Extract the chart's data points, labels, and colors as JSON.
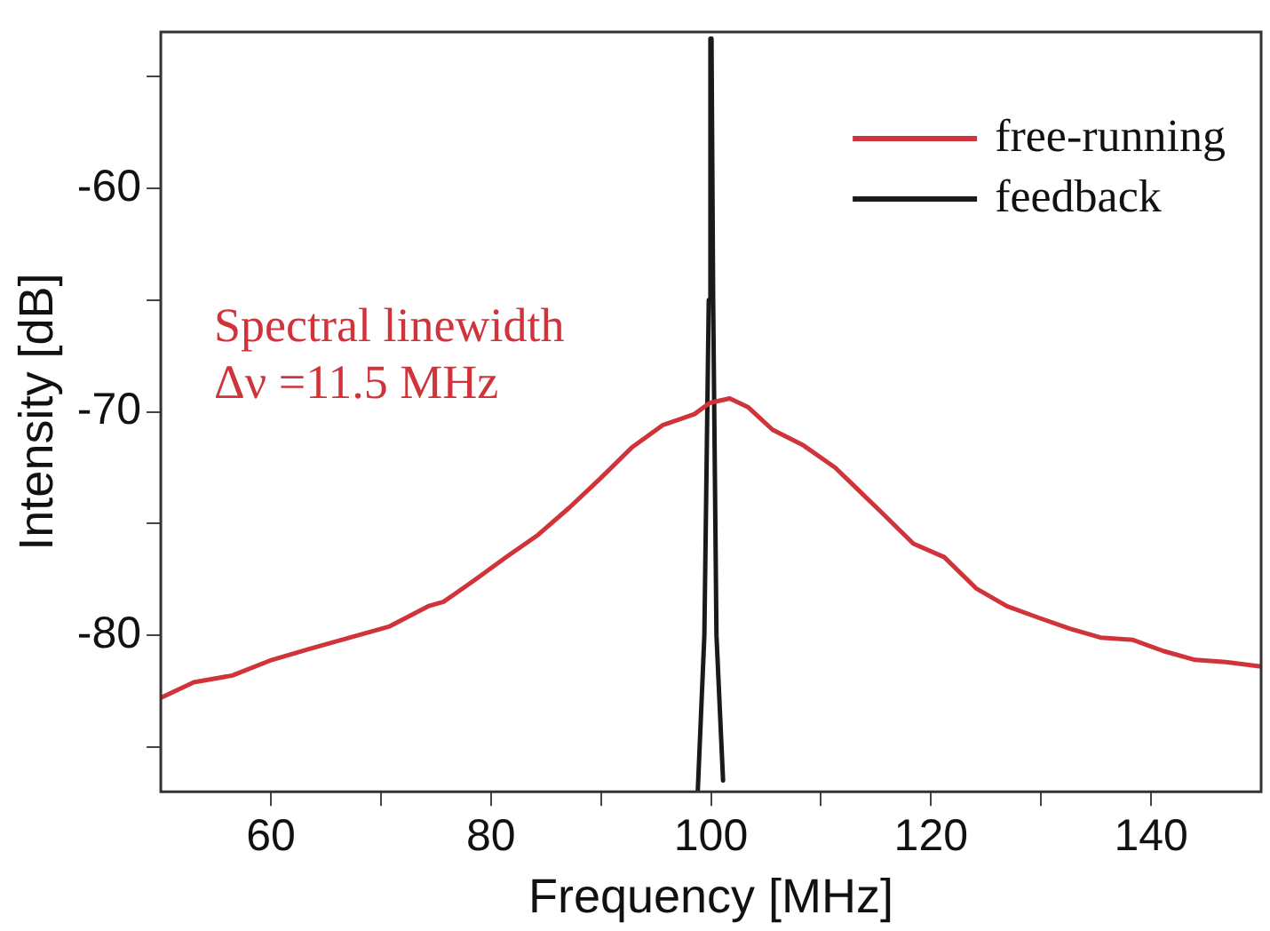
{
  "chart_data": {
    "type": "line",
    "xlabel": "Frequency [MHz]",
    "ylabel": "Intensity [dB]",
    "xlim": [
      50,
      150
    ],
    "xticks": [
      60,
      {
        "value": 70,
        "label": null
      },
      80,
      {
        "value": 90,
        "label": null
      },
      100,
      {
        "value": 110,
        "label": null
      },
      120,
      {
        "value": 130,
        "label": null
      },
      140
    ],
    "ylim": [
      -87,
      -53
    ],
    "yticks": [
      {
        "value": -85,
        "label": null
      },
      -80,
      {
        "value": -75,
        "label": null
      },
      -70,
      {
        "value": -65,
        "label": null
      },
      -60,
      {
        "value": -55,
        "label": null
      }
    ],
    "grid": false,
    "legend": "top right",
    "marker": "none",
    "line_style": "solid",
    "annotations": [
      "Spectral linewidth",
      "Δν =11.5 MHz"
    ],
    "series": [
      {
        "name": "free-running",
        "color": "#d0343a",
        "x": [
          50,
          53,
          56.5,
          60.1,
          63.6,
          67.2,
          70.8,
          74.3,
          75.7,
          78.6,
          81.4,
          84.3,
          87.1,
          89.9,
          92.8,
          95.6,
          98.5,
          99.9,
          101.7,
          103.4,
          105.6,
          108.4,
          111.3,
          113.4,
          115.5,
          118.4,
          121.2,
          124.1,
          126.9,
          129.7,
          132.6,
          135.4,
          138.3,
          141.1,
          144,
          146.8,
          150
        ],
        "values": [
          -82.8,
          -82.1,
          -81.8,
          -81.1,
          -80.6,
          -80.1,
          -79.6,
          -78.7,
          -78.5,
          -77.5,
          -76.5,
          -75.5,
          -74.3,
          -73,
          -71.6,
          -70.6,
          -70.1,
          -69.6,
          -69.4,
          -69.8,
          -70.8,
          -71.5,
          -72.5,
          -73.5,
          -74.5,
          -75.9,
          -76.5,
          -77.9,
          -78.7,
          -79.2,
          -79.7,
          -80.1,
          -80.2,
          -80.7,
          -81.1,
          -81.2,
          -81.4
        ]
      },
      {
        "name": "feedback",
        "color": "#1a1a1a",
        "x": [
          98.8,
          99.4,
          99.8,
          99.95,
          100.05,
          100.2,
          100.5,
          101.1
        ],
        "values": [
          -87,
          -80,
          -65,
          -53.3,
          -53.3,
          -65,
          -80,
          -86.5
        ]
      }
    ]
  }
}
